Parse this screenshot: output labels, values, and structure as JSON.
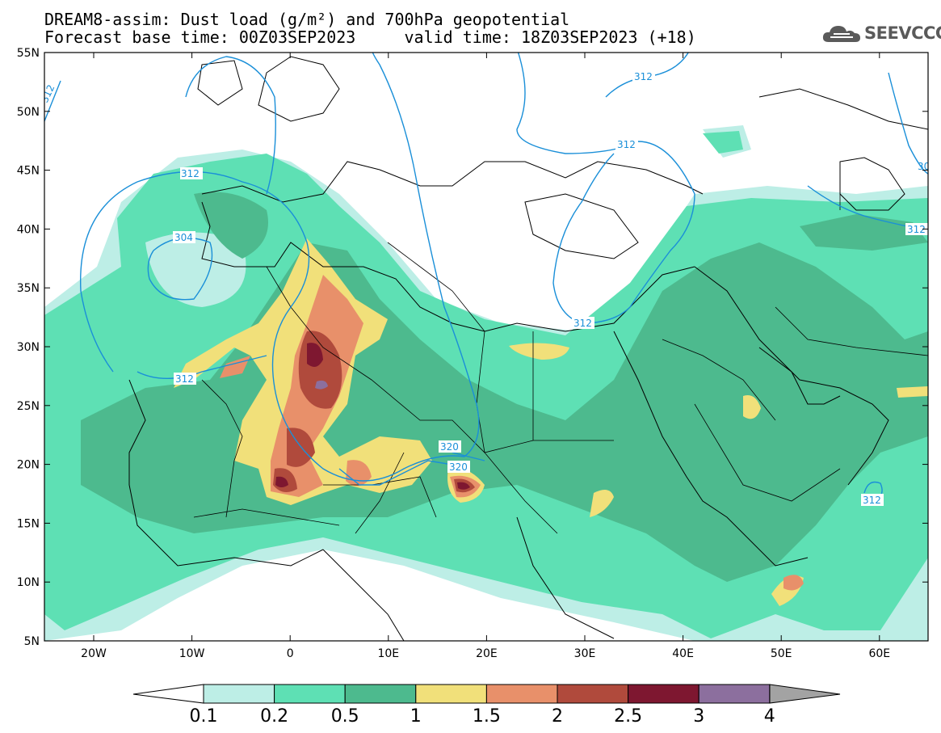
{
  "header": {
    "title_line1": "DREAM8-assim: Dust load (g/m²) and 700hPa geopotential",
    "title_line2": "Forecast base time: 00Z03SEP2023     valid time: 18Z03SEP2023 (+18)"
  },
  "logo": {
    "text": "SEEVCCC",
    "icon": "cloud-icon"
  },
  "axes": {
    "lat_labels": [
      "55N",
      "50N",
      "45N",
      "40N",
      "35N",
      "30N",
      "25N",
      "20N",
      "15N",
      "10N",
      "5N"
    ],
    "lon_labels": [
      "20W",
      "10W",
      "0",
      "10E",
      "20E",
      "30E",
      "40E",
      "50E",
      "60E"
    ]
  },
  "contour_labels": {
    "c1": "312",
    "c2": "312",
    "c3": "304",
    "c4": "312",
    "c5": "312",
    "c6": "312",
    "c7": "320",
    "c8": "320",
    "c9": "312",
    "c10": "312",
    "c11": "312",
    "c12": "30"
  },
  "colorbar": {
    "labels": [
      "0.1",
      "0.2",
      "0.5",
      "1",
      "1.5",
      "2",
      "2.5",
      "3",
      "4"
    ],
    "colors": [
      "#bdeee6",
      "#5ee0b4",
      "#4dba8e",
      "#f1e07a",
      "#e8906a",
      "#b04a3c",
      "#7e1730",
      "#8c6f9e",
      "#a3a3a3"
    ]
  },
  "colors": {
    "contour": "#1a8fd8",
    "background": "#ffffff"
  }
}
